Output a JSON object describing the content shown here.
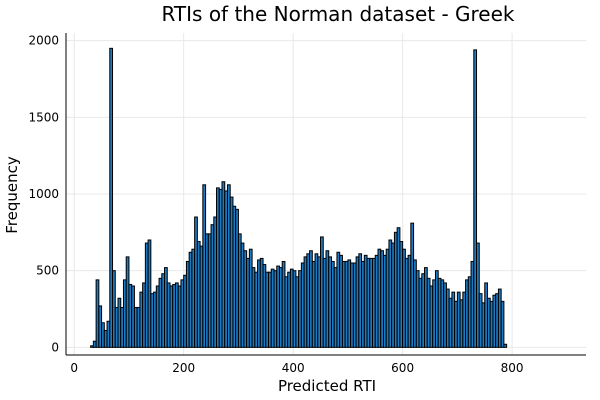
{
  "chart_data": {
    "type": "bar",
    "title": "RTIs of the Norman dataset - Greek",
    "xlabel": "Predicted RTI",
    "ylabel": "Frequency",
    "xlim": [
      -15,
      935
    ],
    "ylim": [
      -50,
      2050
    ],
    "xticks": [
      0,
      200,
      400,
      600,
      800
    ],
    "yticks": [
      0,
      500,
      1000,
      1500,
      2000
    ],
    "grid": true,
    "legend": "none",
    "bin_width": 5,
    "x_start": 30,
    "values": [
      10,
      40,
      440,
      270,
      160,
      110,
      170,
      1950,
      500,
      260,
      320,
      260,
      440,
      590,
      410,
      400,
      260,
      260,
      360,
      420,
      680,
      700,
      350,
      360,
      400,
      450,
      480,
      520,
      420,
      400,
      410,
      420,
      400,
      440,
      470,
      560,
      620,
      640,
      850,
      690,
      660,
      1060,
      740,
      740,
      800,
      850,
      1040,
      1030,
      1080,
      1020,
      1060,
      980,
      920,
      900,
      740,
      680,
      630,
      580,
      640,
      520,
      490,
      570,
      580,
      540,
      490,
      490,
      510,
      500,
      530,
      520,
      560,
      460,
      490,
      510,
      500,
      460,
      500,
      550,
      590,
      610,
      630,
      560,
      610,
      590,
      720,
      580,
      630,
      590,
      560,
      520,
      620,
      600,
      560,
      560,
      570,
      550,
      550,
      590,
      610,
      560,
      600,
      580,
      580,
      580,
      600,
      640,
      630,
      600,
      640,
      700,
      680,
      750,
      780,
      690,
      640,
      580,
      600,
      810,
      570,
      500,
      450,
      480,
      520,
      450,
      400,
      440,
      500,
      450,
      440,
      420,
      380,
      320,
      360,
      300,
      360,
      310,
      360,
      440,
      460,
      560,
      1940,
      680,
      350,
      290,
      420,
      320,
      300,
      340,
      350,
      380,
      300,
      20,
      0
    ]
  },
  "colors": {
    "bar_fill": "#1f7bc1",
    "bar_stroke": "#000000"
  }
}
